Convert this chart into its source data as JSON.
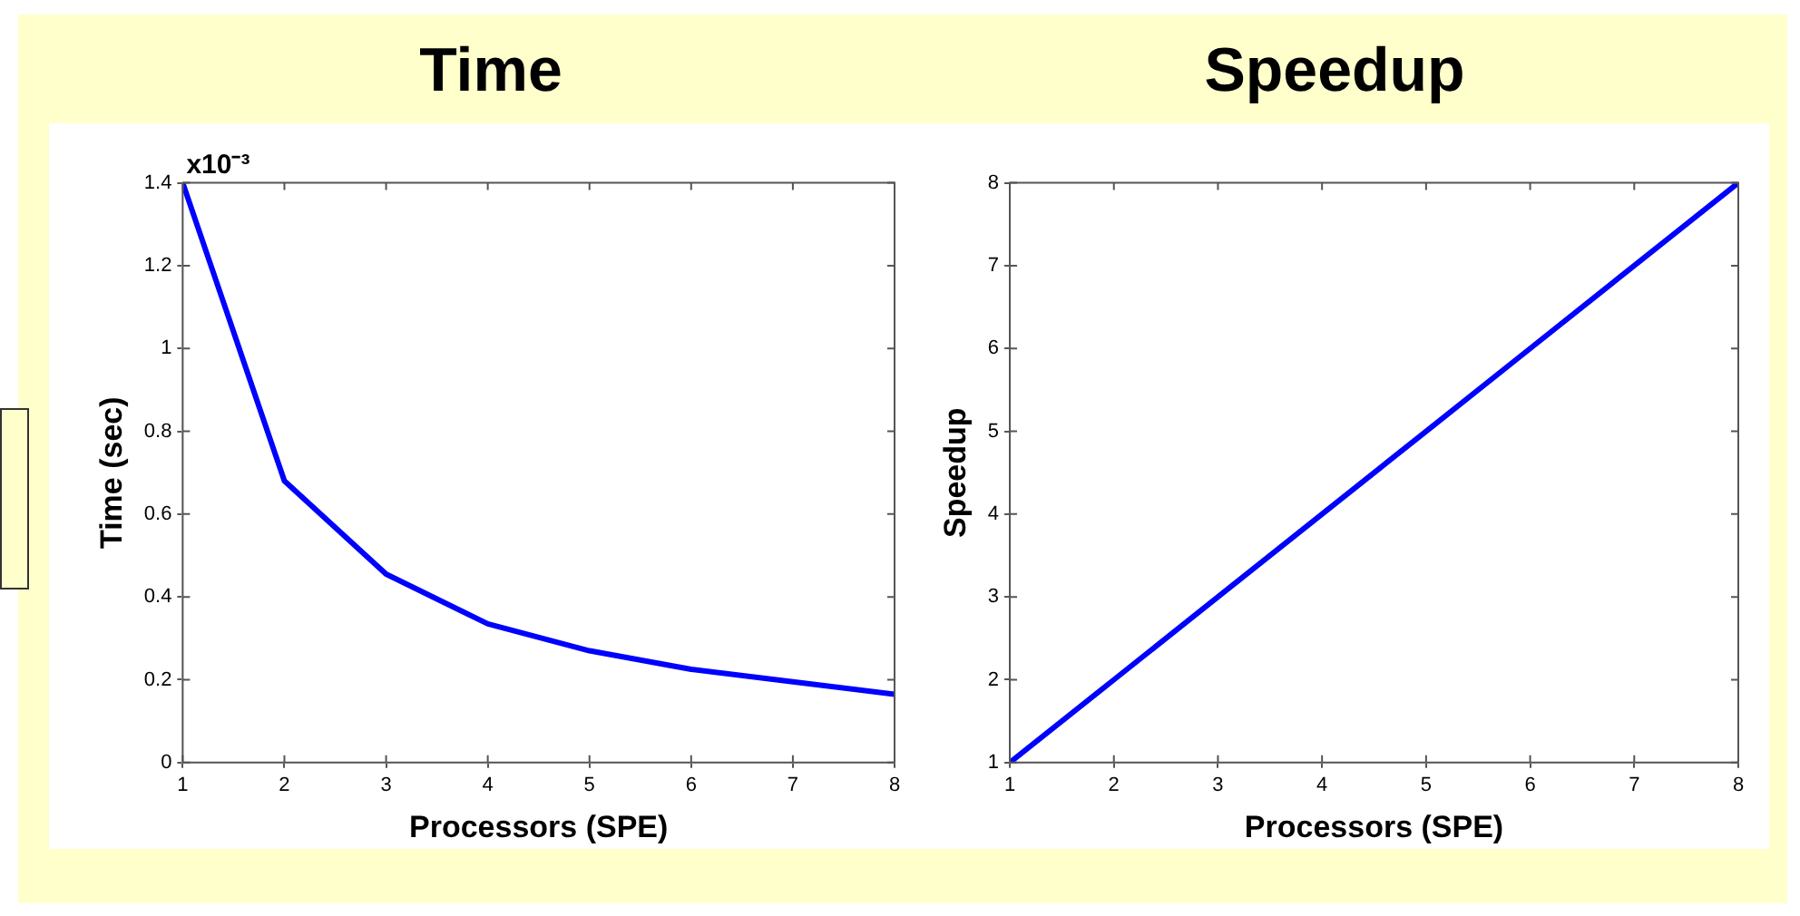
{
  "chart_data": [
    {
      "type": "line",
      "title": "Time",
      "xlabel": "Processors (SPE)",
      "ylabel": "Time (sec)",
      "annotations": [
        "x10⁻³"
      ],
      "x": [
        1,
        2,
        3,
        4,
        5,
        6,
        7,
        8
      ],
      "series": [
        {
          "color": "#0000ff",
          "values": [
            1.4,
            0.68,
            0.455,
            0.335,
            0.27,
            0.225,
            0.195,
            0.165
          ]
        }
      ],
      "xlim": [
        1,
        8
      ],
      "ylim": [
        0,
        1.4
      ],
      "xticks": [
        1,
        2,
        3,
        4,
        5,
        6,
        7,
        8
      ],
      "yticks": [
        0,
        0.2,
        0.4,
        0.6,
        0.8,
        1,
        1.2,
        1.4
      ],
      "grid": false,
      "legend": false,
      "marker": "none",
      "line_style": "solid"
    },
    {
      "type": "line",
      "title": "Speedup",
      "xlabel": "Processors (SPE)",
      "ylabel": "Speedup",
      "x": [
        1,
        2,
        3,
        4,
        5,
        6,
        7,
        8
      ],
      "series": [
        {
          "color": "#0000ff",
          "values": [
            1,
            2,
            3,
            4,
            5,
            6,
            7,
            8
          ]
        }
      ],
      "xlim": [
        1,
        8
      ],
      "ylim": [
        1,
        8
      ],
      "xticks": [
        1,
        2,
        3,
        4,
        5,
        6,
        7,
        8
      ],
      "yticks": [
        1,
        2,
        3,
        4,
        5,
        6,
        7,
        8
      ],
      "grid": false,
      "legend": false,
      "marker": "none",
      "line_style": "solid"
    }
  ]
}
